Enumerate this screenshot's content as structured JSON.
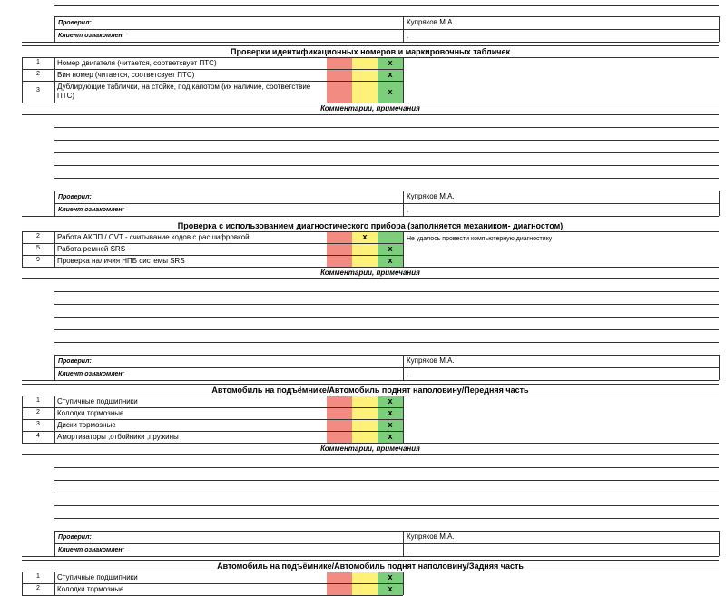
{
  "signoff": {
    "checked_label": "Проверил:",
    "checked_value": "Купряков М.А.",
    "client_label": "Клиент ознакомлен:",
    "client_value": "."
  },
  "comments_label": "Комментарии, примечания",
  "sections": [
    {
      "title": "Проверки идентификационных номеров и маркировочных табличек",
      "rows": [
        {
          "num": "1",
          "text": "Номер двигателя (читается, соответсвует ПТС)",
          "mark": "green",
          "note": ""
        },
        {
          "num": "2",
          "text": "Вин номер (читается, соответсвует ПТС)",
          "mark": "green",
          "note": ""
        },
        {
          "num": "3",
          "text": "Дублирующие таблички, на стойке, под капотом (их наличие, соответствие ПТС)",
          "mark": "green",
          "note": ""
        }
      ]
    },
    {
      "title": "Проверка с использованием диагностического прибора (заполняется механиком- диагностом)",
      "rows": [
        {
          "num": "2",
          "text": "Работа АКПП / CVT - считывание кодов с расшифровкой",
          "mark": "yellow",
          "note": "Не удалось провести компьютерную диагностику"
        },
        {
          "num": "5",
          "text": "Работа ремней SRS",
          "mark": "green",
          "note": ""
        },
        {
          "num": "9",
          "text": "Проверка наличия НПБ системы SRS",
          "mark": "green",
          "note": ""
        }
      ]
    },
    {
      "title": "Автомобиль на подъёмнике/Автомобиль поднят наполовину/Передняя часть",
      "rows": [
        {
          "num": "1",
          "text": "Ступичные подшипники",
          "mark": "green",
          "note": ""
        },
        {
          "num": "2",
          "text": "Колодки тормозные",
          "mark": "green",
          "note": ""
        },
        {
          "num": "3",
          "text": "Диски тормозные",
          "mark": "green",
          "note": ""
        },
        {
          "num": "4",
          "text": "Амортизаторы ,отбойники ,пружины",
          "mark": "green",
          "note": ""
        }
      ]
    },
    {
      "title": "Автомобиль на подъёмнике/Автомобиль поднят наполовину/Задняя часть",
      "rows": [
        {
          "num": "1",
          "text": "Ступичные подшипники",
          "mark": "green",
          "note": ""
        },
        {
          "num": "2",
          "text": "Колодки тормозные",
          "mark": "green",
          "note": ""
        }
      ]
    }
  ],
  "mark_symbol": "x"
}
